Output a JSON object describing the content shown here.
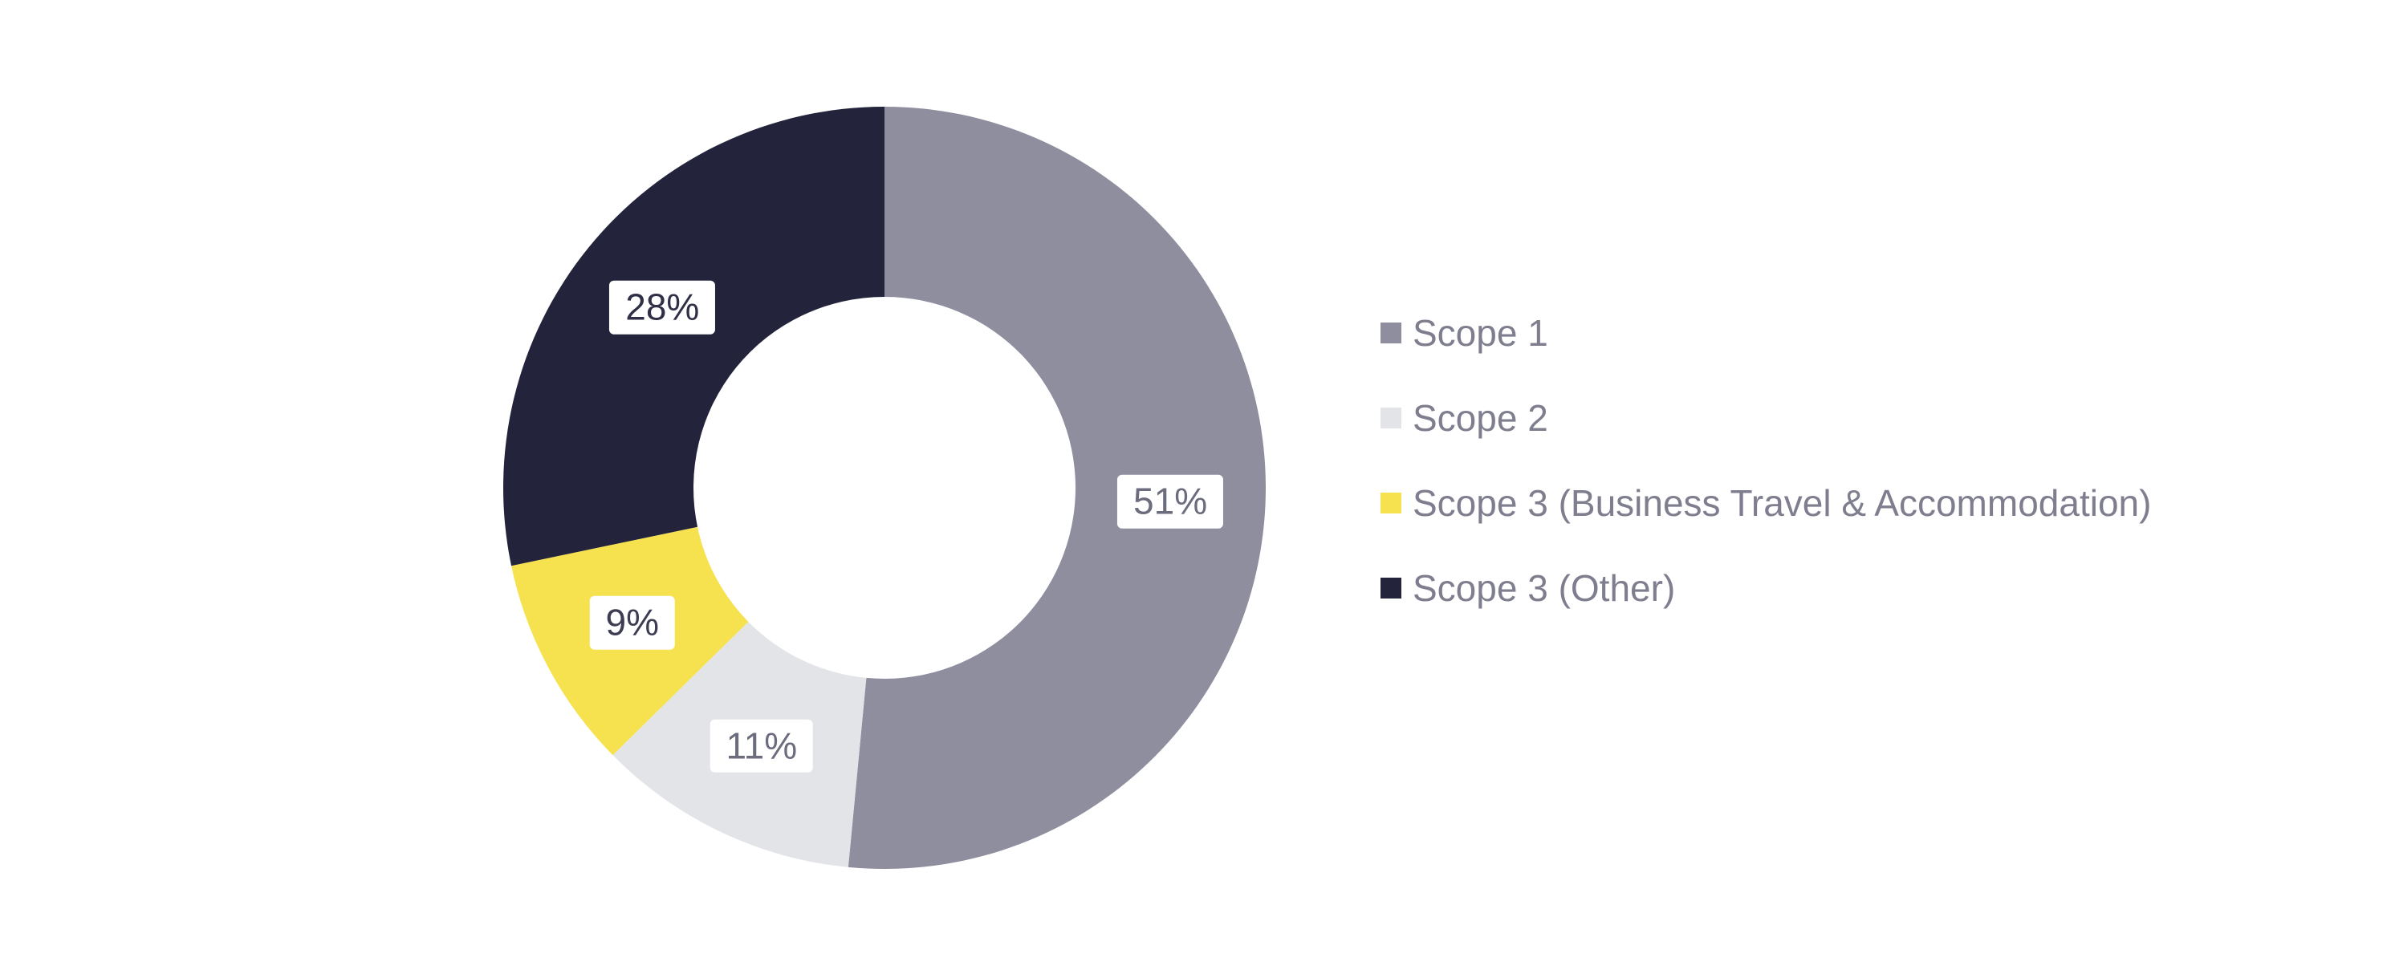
{
  "chart_data": {
    "type": "pie",
    "subtype": "donut",
    "title": "",
    "legend_position": "right",
    "start_angle_deg": 0,
    "inner_radius_ratio": 0.5,
    "series": [
      {
        "name": "Scope 1",
        "value": 51,
        "label": "51%",
        "color": "#8e8e9f",
        "label_color": "#6b6c7e"
      },
      {
        "name": "Scope 2",
        "value": 11,
        "label": "11%",
        "color": "#e3e4e8",
        "label_color": "#6b6c7e"
      },
      {
        "name": "Scope 3 (Business Travel & Accommodation)",
        "value": 9,
        "label": "9%",
        "color": "#f6e14e",
        "label_color": "#3c3d52"
      },
      {
        "name": "Scope 3 (Other)",
        "value": 28,
        "label": "28%",
        "color": "#23243c",
        "label_color": "#2f3047"
      }
    ]
  }
}
